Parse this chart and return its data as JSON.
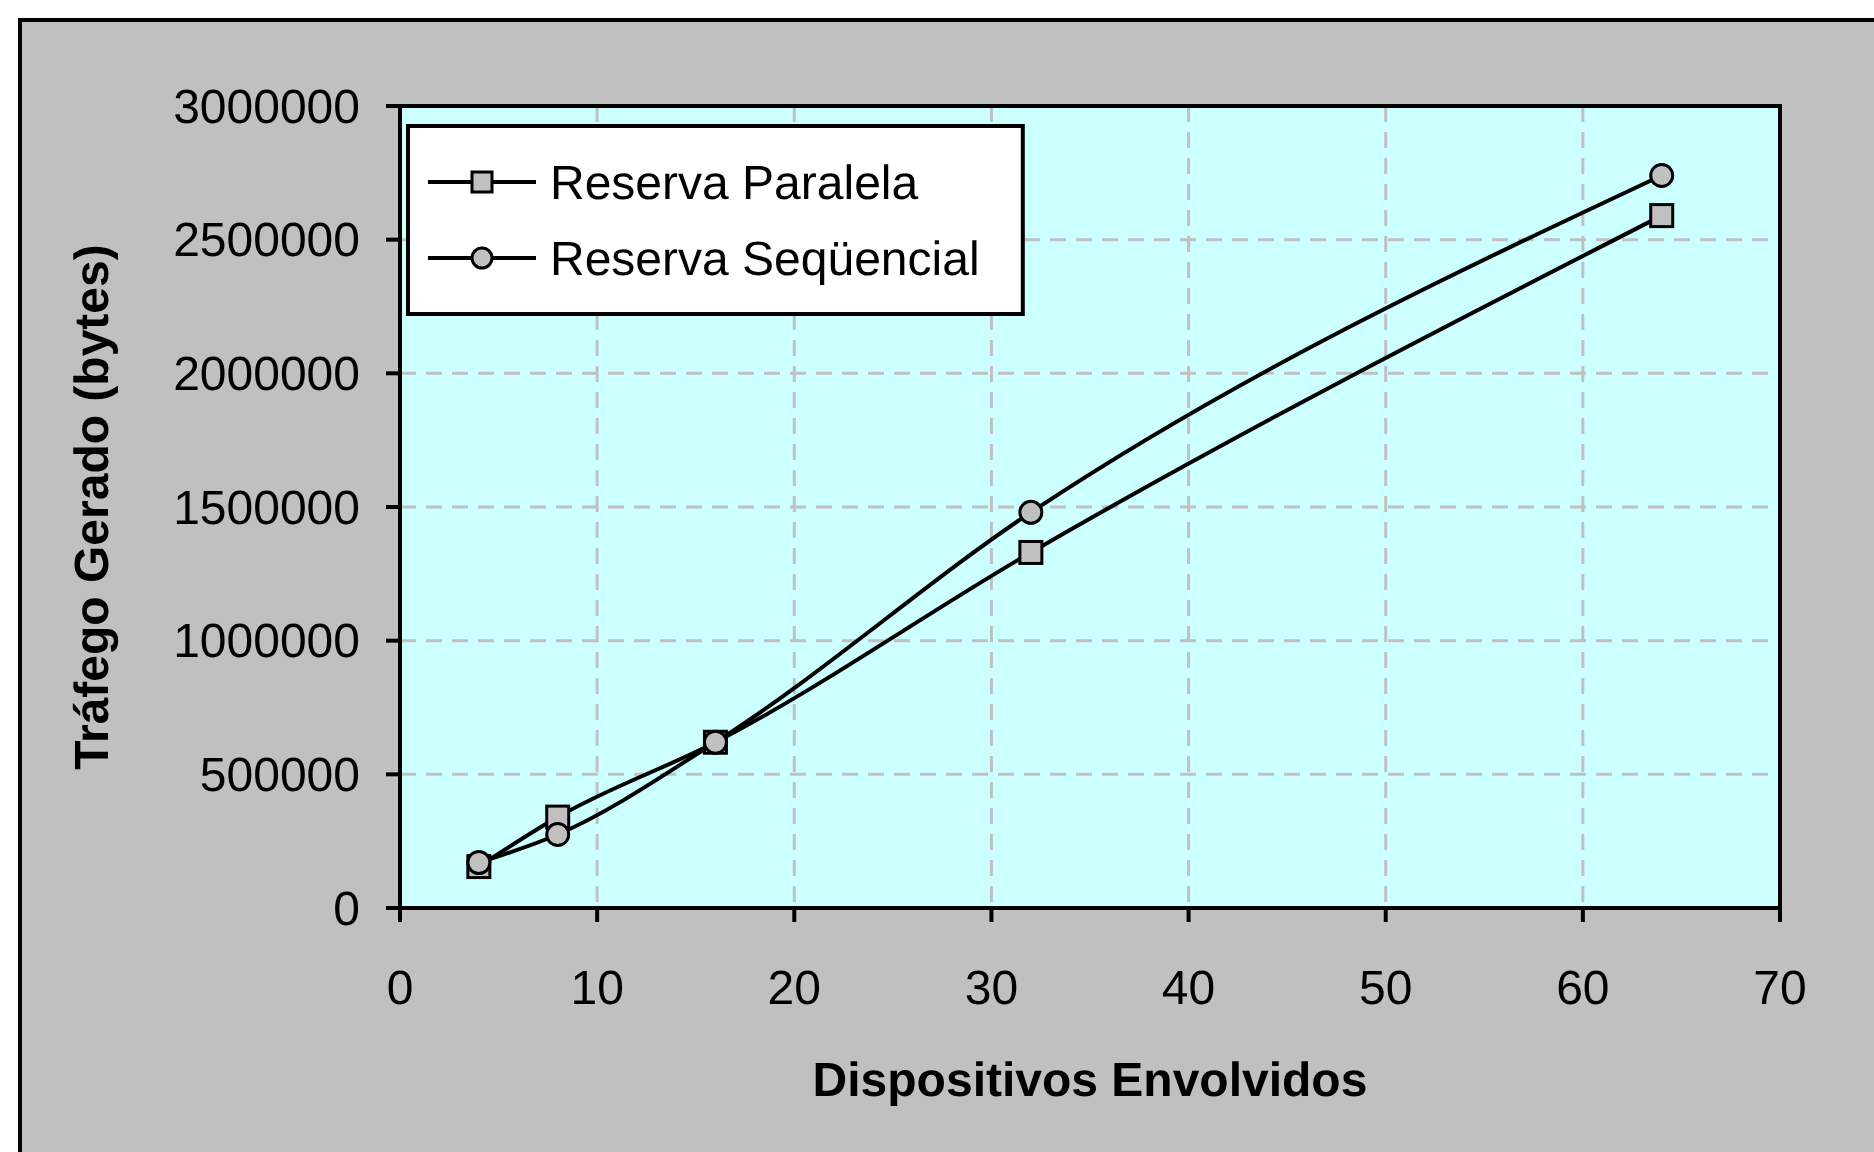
{
  "chart_data": {
    "type": "line",
    "xlabel": "Dispositivos Envolvidos",
    "ylabel": "Tráfego Gerado (bytes)",
    "x": [
      4,
      8,
      16,
      32,
      64
    ],
    "xlim": [
      0,
      70
    ],
    "xticks": [
      0,
      10,
      20,
      30,
      40,
      50,
      60,
      70
    ],
    "ylim": [
      0,
      3000000
    ],
    "yticks": [
      0,
      500000,
      1000000,
      1500000,
      2000000,
      2500000,
      3000000
    ],
    "grid": true,
    "legend": "top left",
    "line_style": "solid",
    "series": [
      {
        "name": "Reserva Paralela",
        "color": "#000000",
        "marker": "square",
        "values": [
          155000,
          340000,
          620000,
          1330000,
          2590000
        ]
      },
      {
        "name": "Reserva Seqüencial",
        "color": "#000000",
        "marker": "circle",
        "values": [
          170000,
          275000,
          620000,
          1480000,
          2740000
        ]
      }
    ]
  }
}
